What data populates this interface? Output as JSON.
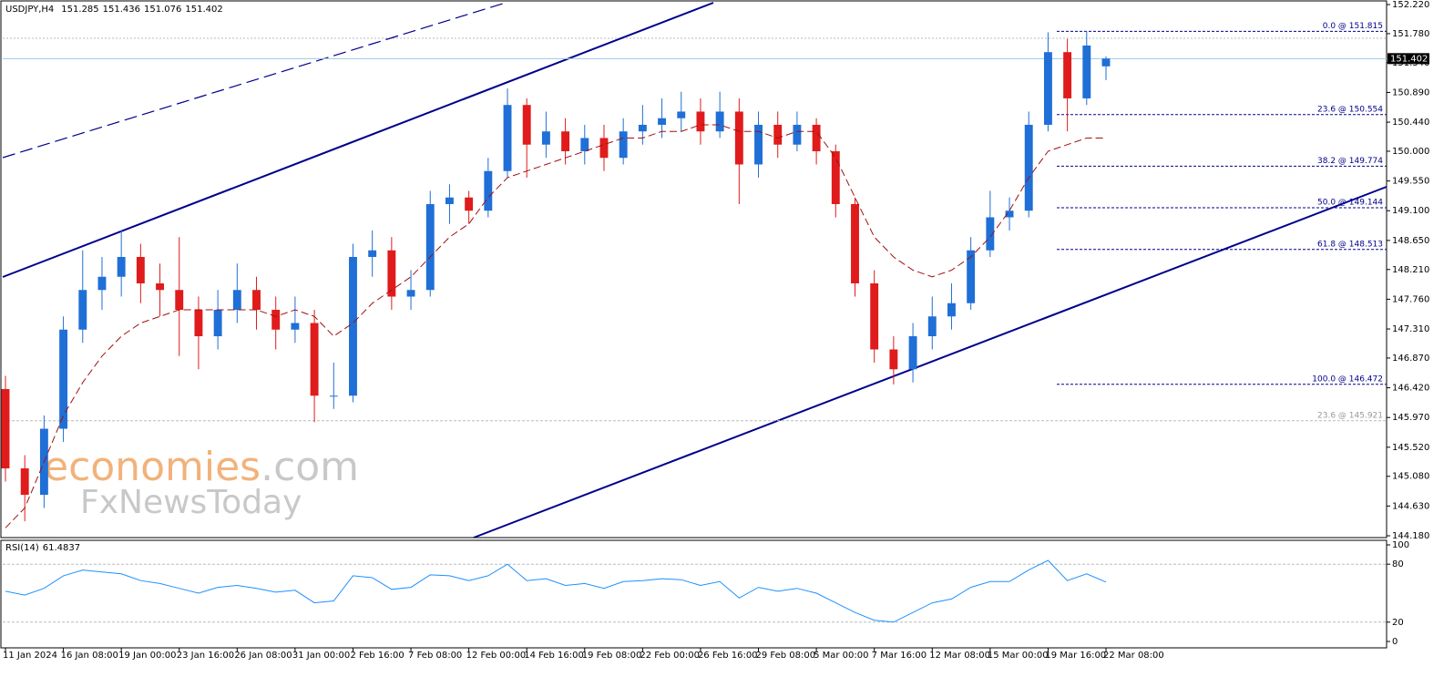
{
  "chart_data": {
    "type": "candlestick",
    "title": "USDJPY,H4",
    "categories": [
      "11 Jan 2024",
      null,
      null,
      "16 Jan 08:00",
      null,
      null,
      "19 Jan 00:00",
      null,
      null,
      "23 Jan 16:00",
      null,
      null,
      "26 Jan 08:00",
      null,
      null,
      "31 Jan 00:00",
      null,
      null,
      "2 Feb 16:00",
      null,
      null,
      "7 Feb 08:00",
      null,
      null,
      "12 Feb 00:00",
      null,
      null,
      "14 Feb 16:00",
      null,
      null,
      "19 Feb 08:00",
      null,
      null,
      "22 Feb 00:00",
      null,
      null,
      "26 Feb 16:00",
      null,
      null,
      "29 Feb 08:00",
      null,
      null,
      "5 Mar 00:00",
      null,
      null,
      "7 Mar 16:00",
      null,
      null,
      "12 Mar 08:00",
      null,
      null,
      "15 Mar 00:00",
      null,
      null,
      "19 Mar 16:00",
      null,
      null,
      "22 Mar 08:00"
    ],
    "open": [
      146.4,
      145.2,
      144.8,
      145.8,
      147.3,
      147.9,
      148.1,
      148.4,
      148.0,
      147.9,
      147.6,
      147.2,
      147.6,
      147.9,
      147.6,
      147.3,
      147.4,
      146.3,
      146.3,
      148.4,
      148.5,
      147.8,
      147.9,
      149.2,
      149.3,
      149.1,
      149.7,
      150.7,
      150.1,
      150.3,
      150.0,
      150.2,
      149.9,
      150.3,
      150.4,
      150.5,
      150.6,
      150.3,
      150.6,
      149.8,
      150.4,
      150.1,
      150.4,
      150.0,
      149.2,
      148.0,
      147.0,
      146.7,
      147.2,
      147.5,
      147.7,
      148.5,
      149.0,
      149.1,
      150.4,
      151.5,
      150.8,
      151.285
    ],
    "high": [
      146.6,
      145.4,
      146.0,
      147.5,
      148.5,
      148.4,
      148.8,
      148.6,
      148.3,
      148.7,
      147.8,
      147.9,
      148.3,
      148.1,
      147.8,
      147.8,
      147.6,
      146.8,
      148.6,
      148.8,
      148.7,
      148.2,
      149.4,
      149.5,
      149.4,
      149.9,
      150.95,
      150.8,
      150.6,
      150.5,
      150.4,
      150.4,
      150.5,
      150.7,
      150.8,
      150.9,
      150.8,
      150.9,
      150.8,
      150.6,
      150.6,
      150.6,
      150.5,
      150.1,
      149.3,
      148.2,
      147.2,
      147.4,
      147.8,
      148.0,
      148.7,
      149.4,
      149.3,
      150.6,
      151.8,
      151.7,
      151.82,
      151.436
    ],
    "low": [
      145.0,
      144.4,
      144.6,
      145.6,
      147.1,
      147.6,
      147.8,
      147.7,
      147.5,
      146.9,
      146.7,
      147.0,
      147.4,
      147.3,
      147.0,
      147.1,
      145.9,
      146.1,
      146.2,
      148.1,
      147.6,
      147.6,
      147.8,
      148.9,
      148.9,
      149.0,
      149.6,
      149.6,
      149.9,
      149.8,
      149.8,
      149.7,
      149.8,
      150.1,
      150.2,
      150.3,
      150.1,
      150.2,
      149.2,
      149.6,
      149.9,
      150.0,
      149.8,
      149.0,
      147.8,
      146.8,
      146.47,
      146.5,
      147.0,
      147.3,
      147.6,
      148.4,
      148.8,
      149.0,
      150.3,
      150.3,
      150.7,
      151.076
    ],
    "close": [
      145.2,
      144.8,
      145.8,
      147.3,
      147.9,
      148.1,
      148.4,
      148.0,
      147.9,
      147.6,
      147.2,
      147.6,
      147.9,
      147.6,
      147.3,
      147.4,
      146.3,
      146.3,
      148.4,
      148.5,
      147.8,
      147.9,
      149.2,
      149.3,
      149.1,
      149.7,
      150.7,
      150.1,
      150.3,
      150.0,
      150.2,
      149.9,
      150.3,
      150.4,
      150.5,
      150.6,
      150.3,
      150.6,
      149.8,
      150.4,
      150.1,
      150.4,
      150.0,
      149.2,
      148.0,
      147.0,
      146.7,
      147.2,
      147.5,
      147.7,
      148.5,
      149.0,
      149.1,
      150.4,
      151.5,
      150.8,
      151.6,
      151.402
    ],
    "colors": {
      "up": "#1f6fd6",
      "down": "#e01b1b"
    },
    "ylim": [
      144.18,
      152.22
    ],
    "yticks": [
      {
        "value": 152.22,
        "label": "152.220"
      },
      {
        "value": 151.78,
        "label": "151.780"
      },
      {
        "value": 151.34,
        "label": "151.340"
      },
      {
        "value": 150.89,
        "label": "150.890"
      },
      {
        "value": 150.44,
        "label": "150.440"
      },
      {
        "value": 150.0,
        "label": "150.000"
      },
      {
        "value": 149.55,
        "label": "149.550"
      },
      {
        "value": 149.1,
        "label": "149.100"
      },
      {
        "value": 148.65,
        "label": "148.650"
      },
      {
        "value": 148.21,
        "label": "148.210"
      },
      {
        "value": 147.76,
        "label": "147.760"
      },
      {
        "value": 147.31,
        "label": "147.310"
      },
      {
        "value": 146.87,
        "label": "146.870"
      },
      {
        "value": 146.42,
        "label": "146.420"
      },
      {
        "value": 145.97,
        "label": "145.970"
      },
      {
        "value": 145.52,
        "label": "145.520"
      },
      {
        "value": 145.08,
        "label": "145.080"
      },
      {
        "value": 144.63,
        "label": "144.630"
      },
      {
        "value": 144.18,
        "label": "144.180"
      }
    ],
    "ma": {
      "color": "#a01010",
      "values": [
        144.3,
        144.6,
        145.3,
        146.0,
        146.5,
        146.9,
        147.2,
        147.4,
        147.5,
        147.6,
        147.6,
        147.6,
        147.6,
        147.6,
        147.5,
        147.6,
        147.5,
        147.2,
        147.4,
        147.7,
        147.9,
        148.1,
        148.4,
        148.7,
        148.9,
        149.3,
        149.6,
        149.7,
        149.8,
        149.9,
        150.0,
        150.1,
        150.2,
        150.2,
        150.3,
        150.3,
        150.4,
        150.4,
        150.3,
        150.3,
        150.2,
        150.3,
        150.3,
        149.9,
        149.3,
        148.7,
        148.4,
        148.2,
        148.1,
        148.2,
        148.4,
        148.7,
        149.1,
        149.6,
        150.0,
        150.1,
        150.2,
        150.2
      ]
    },
    "fib": [
      {
        "label": "0.0 @ 151.815",
        "value": 151.815
      },
      {
        "label": "23.6 @ 150.554",
        "value": 150.554
      },
      {
        "label": "38.2 @ 149.774",
        "value": 149.774
      },
      {
        "label": "50.0 @ 149.144",
        "value": 149.144
      },
      {
        "label": "61.8 @ 148.513",
        "value": 148.513
      },
      {
        "label": "100.0 @ 146.472",
        "value": 146.472
      }
    ],
    "fib_old": {
      "label": "23.6 @ 145.921",
      "value": 145.921
    },
    "watermark": {
      "brand": "economies",
      "suffix": ".com",
      "sub": "FxNewsToday"
    },
    "rsi": {
      "type": "line",
      "title": "RSI(14)",
      "color": "#1e90ff",
      "values": [
        52,
        48,
        55,
        68,
        74,
        72,
        70,
        63,
        60,
        55,
        50,
        56,
        58,
        55,
        51,
        53,
        40,
        42,
        68,
        66,
        54,
        56,
        69,
        68,
        63,
        68,
        80,
        63,
        65,
        58,
        60,
        55,
        62,
        63,
        65,
        64,
        58,
        62,
        45,
        56,
        52,
        55,
        50,
        40,
        30,
        22,
        20,
        30,
        40,
        44,
        56,
        62,
        62,
        74,
        84,
        63,
        70,
        61.4837
      ],
      "ylim": [
        0,
        100
      ],
      "yticks": [
        100,
        80,
        20,
        0
      ]
    }
  }
}
